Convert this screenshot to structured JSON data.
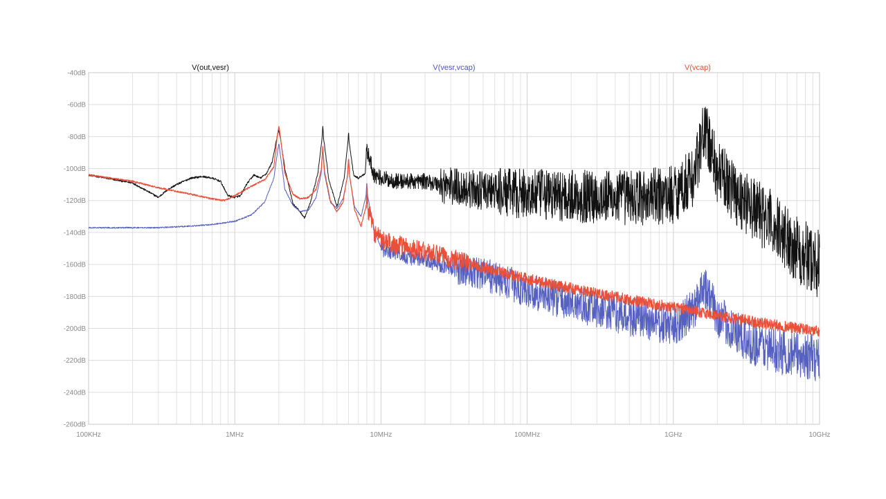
{
  "chart_data": {
    "type": "line",
    "x_scale": "log",
    "xlim": [
      100000,
      10000000000
    ],
    "ylim": [
      -260,
      -40
    ],
    "grid": true,
    "legend_placement": "top",
    "x_tick_labels": [
      {
        "value": 100000,
        "label": "100KHz"
      },
      {
        "value": 1000000,
        "label": "1MHz"
      },
      {
        "value": 10000000,
        "label": "10MHz"
      },
      {
        "value": 100000000,
        "label": "100MHz"
      },
      {
        "value": 1000000000,
        "label": "1GHz"
      },
      {
        "value": 10000000000,
        "label": "10GHz"
      }
    ],
    "y_tick_labels": [
      {
        "value": -40,
        "label": "-40dB"
      },
      {
        "value": -60,
        "label": "-60dB"
      },
      {
        "value": -80,
        "label": "-80dB"
      },
      {
        "value": -100,
        "label": "-100dB"
      },
      {
        "value": -120,
        "label": "-120dB"
      },
      {
        "value": -140,
        "label": "-140dB"
      },
      {
        "value": -160,
        "label": "-160dB"
      },
      {
        "value": -180,
        "label": "-180dB"
      },
      {
        "value": -200,
        "label": "-200dB"
      },
      {
        "value": -220,
        "label": "-220dB"
      },
      {
        "value": -240,
        "label": "-240dB"
      },
      {
        "value": -260,
        "label": "-260dB"
      }
    ],
    "series": [
      {
        "name": "V(out,vesr)",
        "color": "#111111",
        "x": [
          100000,
          200000,
          300000,
          350000,
          400000,
          500000,
          600000,
          700000,
          800000,
          850000,
          900000,
          1000000,
          1100000,
          1200000,
          1350000,
          1500000,
          1650000,
          1800000,
          1950000,
          2000000,
          2050000,
          2200000,
          2500000,
          2800000,
          3000000,
          3300000,
          3700000,
          3950000,
          4000000,
          4050000,
          4400000,
          5000000,
          5600000,
          5950000,
          6000000,
          6050000,
          6500000,
          7000000,
          7800000,
          7950000,
          8000000,
          8050000,
          9000000,
          10000000,
          13000000,
          20000000,
          30000000,
          50000000,
          100000000,
          200000000,
          400000000,
          700000000,
          1000000000,
          1400000000,
          1600000000,
          1700000000,
          2000000000,
          3000000000,
          5000000000,
          7000000000,
          10000000000
        ],
        "values": [
          -104,
          -109,
          -118,
          -113,
          -110,
          -106,
          -105,
          -106,
          -108,
          -113,
          -117,
          -118,
          -117,
          -110,
          -104,
          -106,
          -103,
          -96,
          -80,
          -76,
          -81,
          -100,
          -122,
          -127,
          -131,
          -121,
          -103,
          -81,
          -73,
          -81,
          -107,
          -124,
          -106,
          -83,
          -76,
          -83,
          -104,
          -106,
          -103,
          -89,
          -83,
          -89,
          -104,
          -106,
          -108,
          -108,
          -111,
          -114,
          -116,
          -117,
          -118,
          -118,
          -116,
          -104,
          -77,
          -80,
          -102,
          -120,
          -136,
          -150,
          -160
        ]
      },
      {
        "name": "V(vesr,vcap)",
        "color": "#5560c0",
        "x": [
          100000,
          300000,
          500000,
          700000,
          1000000,
          1300000,
          1600000,
          1850000,
          1950000,
          2000000,
          2050000,
          2200000,
          2500000,
          2800000,
          3200000,
          3600000,
          3900000,
          4000000,
          4100000,
          4500000,
          5000000,
          5500000,
          5900000,
          6000000,
          6100000,
          6600000,
          7300000,
          7900000,
          8000000,
          8100000,
          9000000,
          10000000,
          20000000,
          50000000,
          100000000,
          200000000,
          500000000,
          1000000000,
          1400000000,
          1600000000,
          2000000000,
          3000000000,
          5000000000,
          10000000000
        ],
        "values": [
          -137,
          -137,
          -136,
          -135,
          -133,
          -129,
          -121,
          -106,
          -91,
          -84,
          -91,
          -113,
          -123,
          -127,
          -126,
          -118,
          -103,
          -87,
          -103,
          -121,
          -125,
          -119,
          -105,
          -93,
          -105,
          -124,
          -130,
          -117,
          -108,
          -117,
          -138,
          -150,
          -158,
          -166,
          -176,
          -184,
          -193,
          -199,
          -188,
          -171,
          -192,
          -207,
          -214,
          -219
        ]
      },
      {
        "name": "V(vcap)",
        "color": "#e8503a",
        "x": [
          100000,
          200000,
          300000,
          500000,
          700000,
          850000,
          1000000,
          1300000,
          1600000,
          1850000,
          1950000,
          2000000,
          2050000,
          2200000,
          2500000,
          2800000,
          3200000,
          3600000,
          3900000,
          4000000,
          4100000,
          4500000,
          5000000,
          5500000,
          5900000,
          6000000,
          6100000,
          6600000,
          7300000,
          7900000,
          8000000,
          8100000,
          9000000,
          10000000,
          20000000,
          30000000,
          50000000,
          100000000,
          200000000,
          500000000,
          1000000000,
          2000000000,
          5000000000,
          10000000000
        ],
        "values": [
          -104,
          -108,
          -112,
          -116,
          -119,
          -120,
          -117,
          -111,
          -107,
          -99,
          -80,
          -73,
          -80,
          -103,
          -116,
          -119,
          -118,
          -113,
          -101,
          -86,
          -101,
          -120,
          -127,
          -121,
          -104,
          -93,
          -104,
          -126,
          -136,
          -124,
          -113,
          -124,
          -140,
          -145,
          -152,
          -156,
          -162,
          -169,
          -175,
          -182,
          -187,
          -192,
          -198,
          -202
        ]
      }
    ]
  }
}
